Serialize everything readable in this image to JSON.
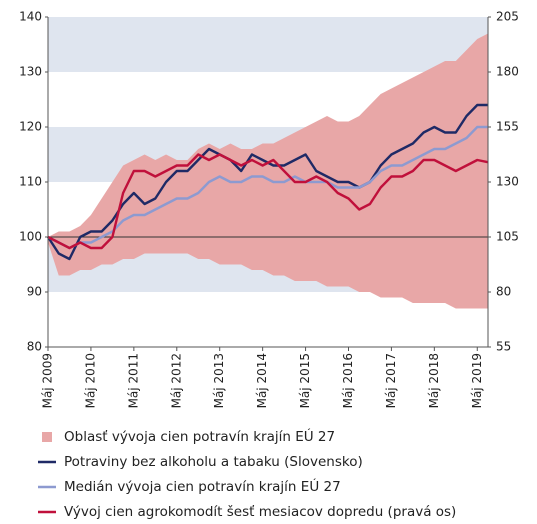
{
  "chart_data": {
    "type": "line",
    "x": [
      "2009-05",
      "2009-08",
      "2009-11",
      "2010-02",
      "2010-05",
      "2010-08",
      "2010-11",
      "2011-02",
      "2011-05",
      "2011-08",
      "2011-11",
      "2012-02",
      "2012-05",
      "2012-08",
      "2012-11",
      "2013-02",
      "2013-05",
      "2013-08",
      "2013-11",
      "2014-02",
      "2014-05",
      "2014-08",
      "2014-11",
      "2015-02",
      "2015-05",
      "2015-08",
      "2015-11",
      "2016-02",
      "2016-05",
      "2016-08",
      "2016-11",
      "2017-02",
      "2017-05",
      "2017-08",
      "2017-11",
      "2018-02",
      "2018-05",
      "2018-08",
      "2018-11",
      "2019-02",
      "2019-05",
      "2019-08"
    ],
    "xlim": [
      "2009-05",
      "2019-08"
    ],
    "xticks": [
      {
        "value": "2009-05",
        "label": "Máj 2009"
      },
      {
        "value": "2010-05",
        "label": "Máj 2010"
      },
      {
        "value": "2011-05",
        "label": "Máj 2011"
      },
      {
        "value": "2012-05",
        "label": "Máj 2012"
      },
      {
        "value": "2013-05",
        "label": "Máj 2013"
      },
      {
        "value": "2014-05",
        "label": "Máj 2014"
      },
      {
        "value": "2015-05",
        "label": "Máj 2015"
      },
      {
        "value": "2016-05",
        "label": "Máj 2016"
      },
      {
        "value": "2017-05",
        "label": "Máj 2017"
      },
      {
        "value": "2018-05",
        "label": "Máj 2018"
      },
      {
        "value": "2019-05",
        "label": "Máj 2019"
      }
    ],
    "ylim": [
      80,
      140
    ],
    "yticks": [
      80,
      90,
      100,
      110,
      120,
      130,
      140
    ],
    "y2lim": [
      55,
      205
    ],
    "y2ticks": [
      55,
      80,
      105,
      130,
      155,
      180,
      205
    ],
    "grid": "bands",
    "reference_line": 100,
    "series": [
      {
        "name": "Oblasť vývoja cien potravín krajín EÚ 27",
        "kind": "area",
        "color": "#e8a7a7",
        "high": [
          100,
          101,
          101,
          102,
          104,
          107,
          110,
          113,
          114,
          115,
          114,
          115,
          114,
          114,
          116,
          117,
          116,
          117,
          116,
          116,
          117,
          117,
          118,
          119,
          120,
          121,
          122,
          121,
          121,
          122,
          124,
          126,
          127,
          128,
          129,
          130,
          131,
          132,
          132,
          134,
          136,
          137
        ],
        "low": [
          99,
          93,
          93,
          94,
          94,
          95,
          95,
          96,
          96,
          97,
          97,
          97,
          97,
          97,
          96,
          96,
          95,
          95,
          95,
          94,
          94,
          93,
          93,
          92,
          92,
          92,
          91,
          91,
          91,
          90,
          90,
          89,
          89,
          89,
          88,
          88,
          88,
          88,
          87,
          87,
          87,
          87
        ]
      },
      {
        "name": "Potraviny bez alkoholu a tabaku (Slovensko)",
        "kind": "line",
        "color": "#1f2a66",
        "values": [
          100,
          97,
          96,
          100,
          101,
          101,
          103,
          106,
          108,
          106,
          107,
          110,
          112,
          112,
          114,
          116,
          115,
          114,
          112,
          115,
          114,
          113,
          113,
          114,
          115,
          112,
          111,
          110,
          110,
          109,
          110,
          113,
          115,
          116,
          117,
          119,
          120,
          119,
          119,
          122,
          124,
          124
        ]
      },
      {
        "name": "Medián vývoja cien potravín krajín EÚ 27",
        "kind": "line",
        "color": "#8d9ad0",
        "values": [
          100,
          99,
          98,
          99,
          99,
          100,
          101,
          103,
          104,
          104,
          105,
          106,
          107,
          107,
          108,
          110,
          111,
          110,
          110,
          111,
          111,
          110,
          110,
          111,
          110,
          110,
          110,
          109,
          109,
          109,
          110,
          112,
          113,
          113,
          114,
          115,
          116,
          116,
          117,
          118,
          120,
          120
        ]
      },
      {
        "name": "Vývoj cien agrokomodít šesť mesiacov dopredu (pravá os)",
        "kind": "line",
        "color": "#c0103b",
        "axis": "y2",
        "values": [
          105,
          102.5,
          100,
          102.5,
          100,
          100,
          105,
          125,
          135,
          135,
          132.5,
          135,
          137.5,
          137.5,
          142.5,
          140,
          142.5,
          140,
          137.5,
          140,
          137.5,
          140,
          135,
          130,
          130,
          132.5,
          130,
          125,
          122.5,
          117.5,
          120,
          127.5,
          132.5,
          132.5,
          135,
          140,
          140,
          137.5,
          135,
          137.5,
          140,
          139
        ]
      }
    ]
  }
}
